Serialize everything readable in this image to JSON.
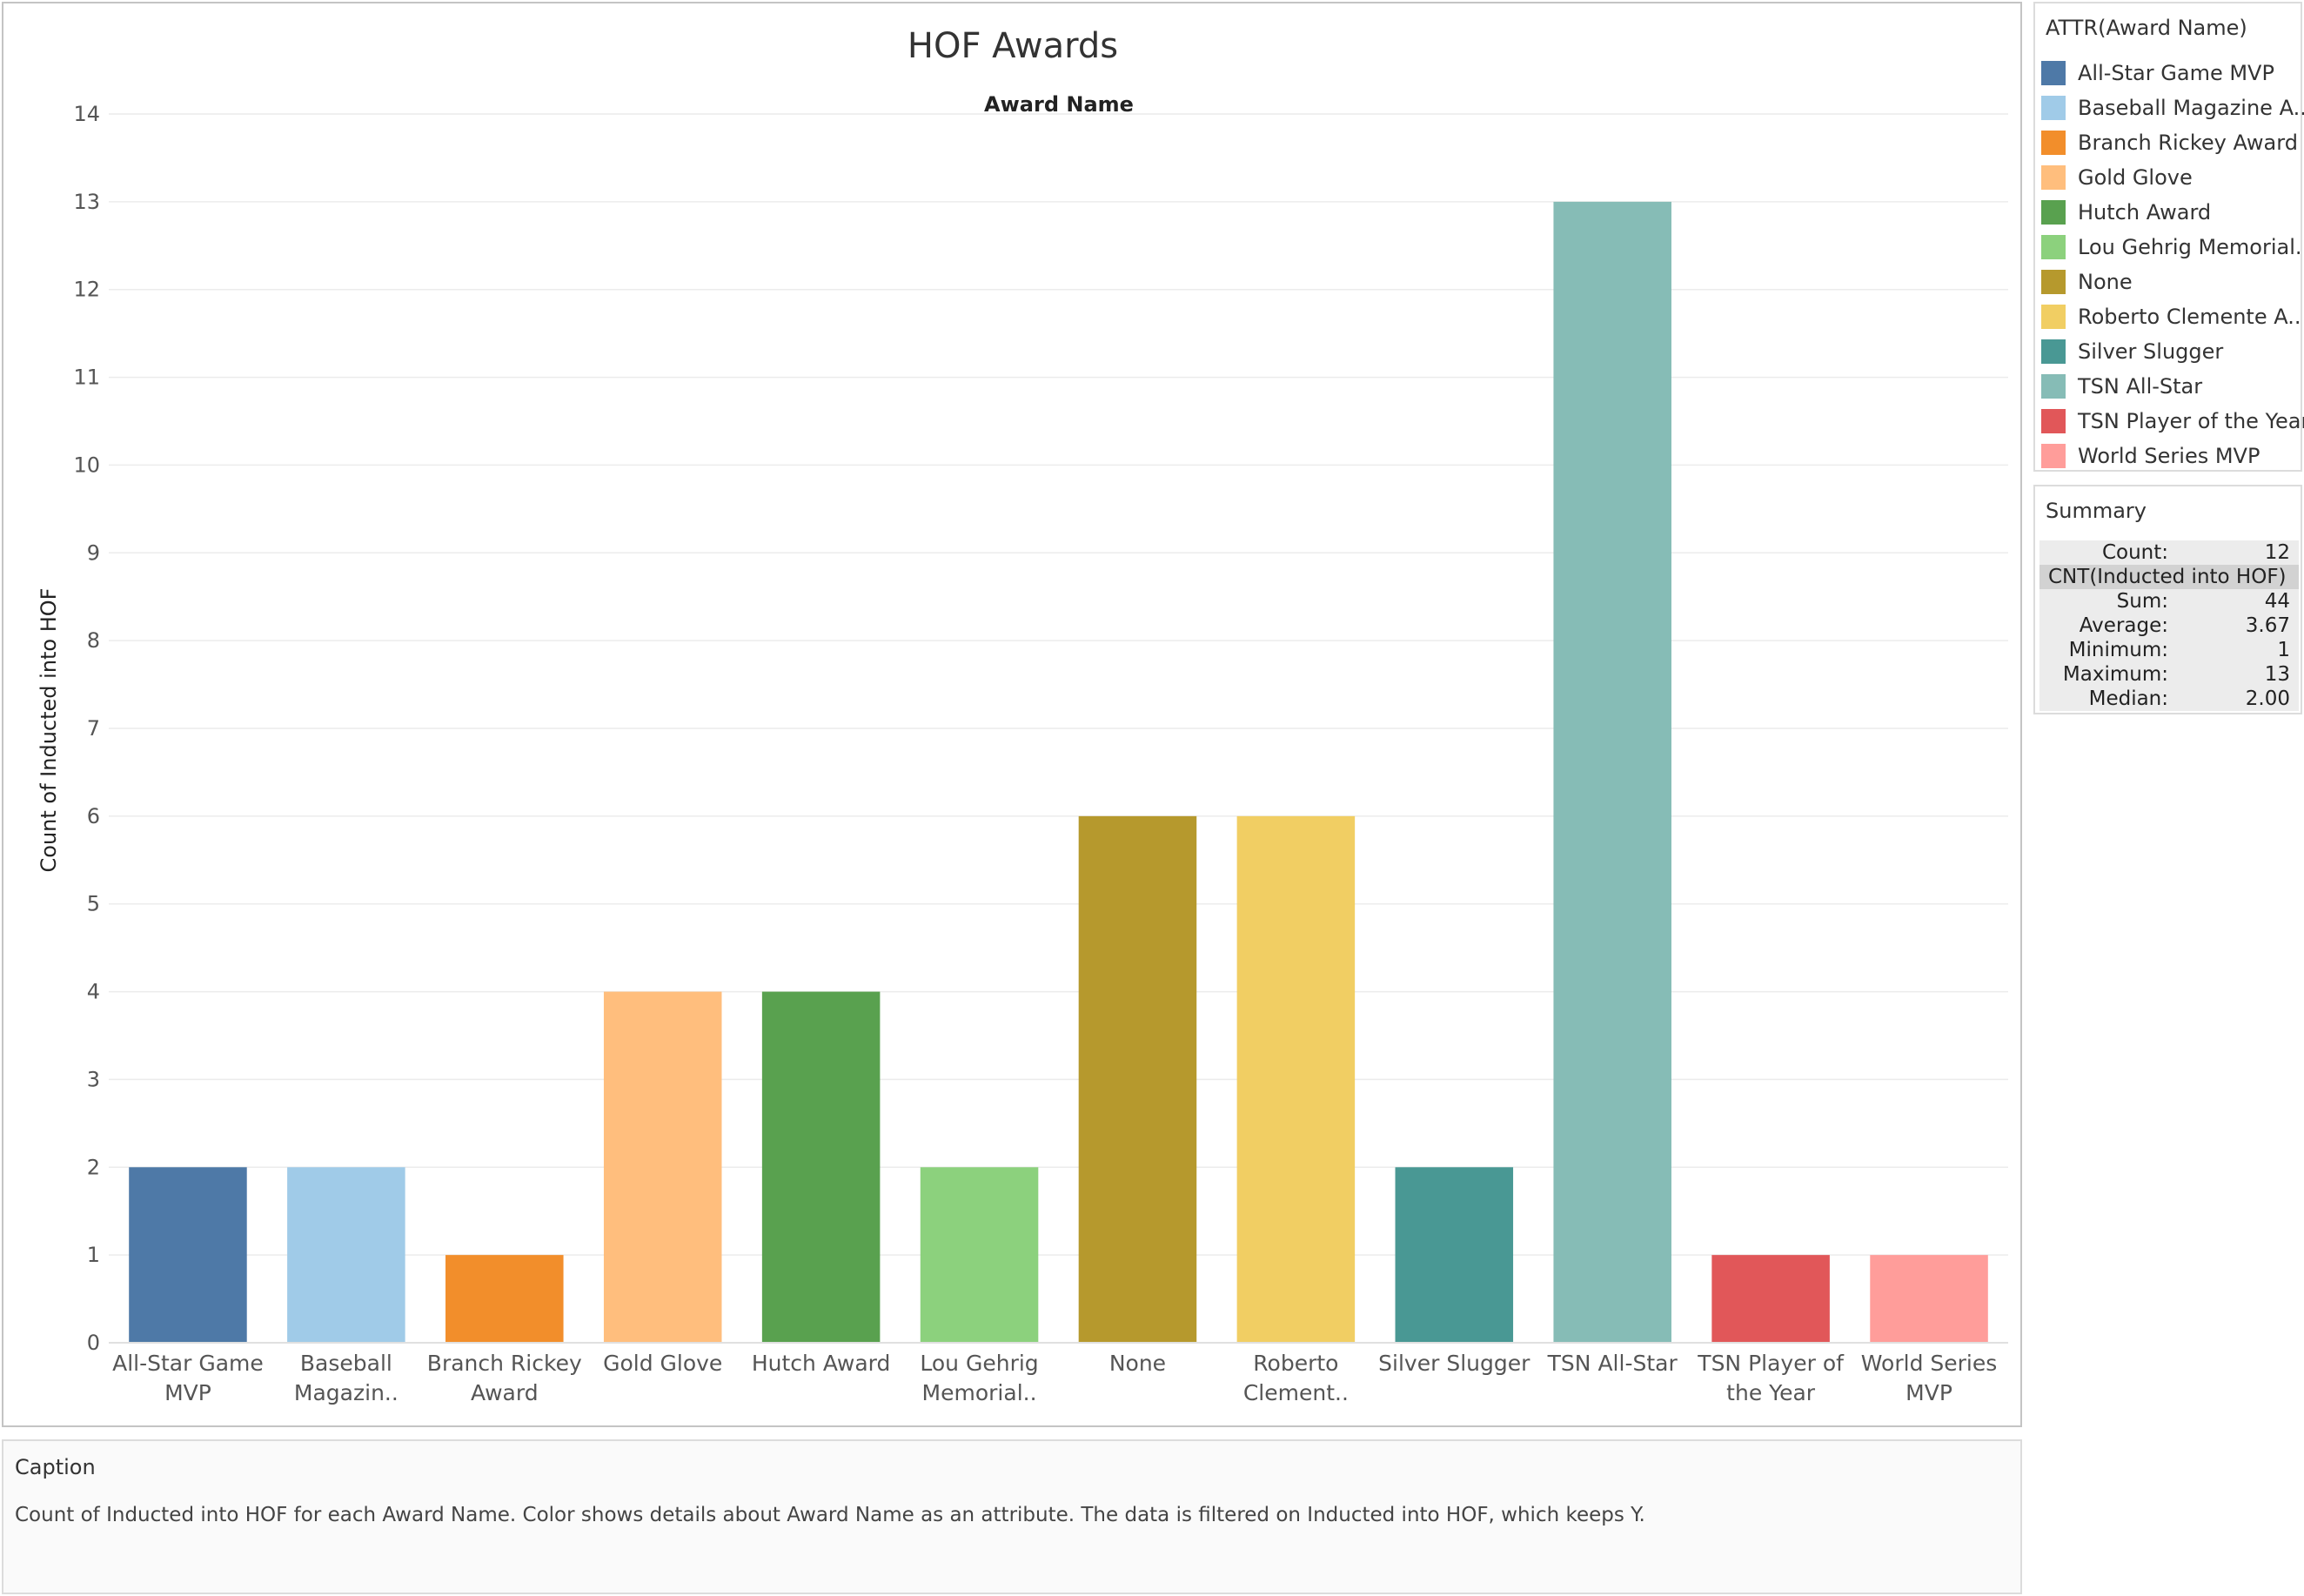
{
  "chart_data": {
    "type": "bar",
    "title": "HOF Awards",
    "xlabel": "Award Name",
    "ylabel": "Count of Inducted into HOF",
    "ylim": [
      0,
      14
    ],
    "yticks": [
      0,
      1,
      2,
      3,
      4,
      5,
      6,
      7,
      8,
      9,
      10,
      11,
      12,
      13,
      14
    ],
    "grid": true,
    "categories": [
      [
        "All-Star Game",
        "MVP"
      ],
      [
        "Baseball",
        "Magazin.."
      ],
      [
        "Branch Rickey",
        "Award"
      ],
      [
        "Gold Glove"
      ],
      [
        "Hutch Award"
      ],
      [
        "Lou Gehrig",
        "Memorial.."
      ],
      [
        "None"
      ],
      [
        "Roberto",
        "Clement.."
      ],
      [
        "Silver Slugger"
      ],
      [
        "TSN All-Star"
      ],
      [
        "TSN Player of",
        "the Year"
      ],
      [
        "World Series",
        "MVP"
      ]
    ],
    "values": [
      2,
      2,
      1,
      4,
      4,
      2,
      6,
      6,
      2,
      13,
      1,
      1
    ],
    "colors": [
      "#4e79a7",
      "#a0cbe8",
      "#f28e2b",
      "#ffbe7d",
      "#59a14f",
      "#8cd17d",
      "#b6992d",
      "#f1ce63",
      "#499894",
      "#86bcb6",
      "#e15759",
      "#ff9d9a"
    ]
  },
  "legend": {
    "title": "ATTR(Award Name)",
    "items": [
      {
        "label": "All-Star Game MVP",
        "color": "#4e79a7"
      },
      {
        "label": "Baseball Magazine A..",
        "color": "#a0cbe8"
      },
      {
        "label": "Branch Rickey Award",
        "color": "#f28e2b"
      },
      {
        "label": "Gold Glove",
        "color": "#ffbe7d"
      },
      {
        "label": "Hutch Award",
        "color": "#59a14f"
      },
      {
        "label": "Lou Gehrig Memorial..",
        "color": "#8cd17d"
      },
      {
        "label": "None",
        "color": "#b6992d"
      },
      {
        "label": "Roberto Clemente A..",
        "color": "#f1ce63"
      },
      {
        "label": "Silver Slugger",
        "color": "#499894"
      },
      {
        "label": "TSN All-Star",
        "color": "#86bcb6"
      },
      {
        "label": "TSN Player of the Year",
        "color": "#e15759"
      },
      {
        "label": "World Series MVP",
        "color": "#ff9d9a"
      }
    ]
  },
  "summary": {
    "title": "Summary",
    "count_label": "Count:",
    "count_value": "12",
    "measure": "CNT(Inducted into HOF)",
    "rows": [
      {
        "key": "Sum:",
        "value": "44"
      },
      {
        "key": "Average:",
        "value": "3.67"
      },
      {
        "key": "Minimum:",
        "value": "1"
      },
      {
        "key": "Maximum:",
        "value": "13"
      },
      {
        "key": "Median:",
        "value": "2.00"
      }
    ]
  },
  "caption": {
    "title": "Caption",
    "text": "Count of Inducted into HOF for each Award Name.  Color shows details about Award Name as an attribute. The data is filtered on Inducted into HOF, which keeps Y."
  }
}
